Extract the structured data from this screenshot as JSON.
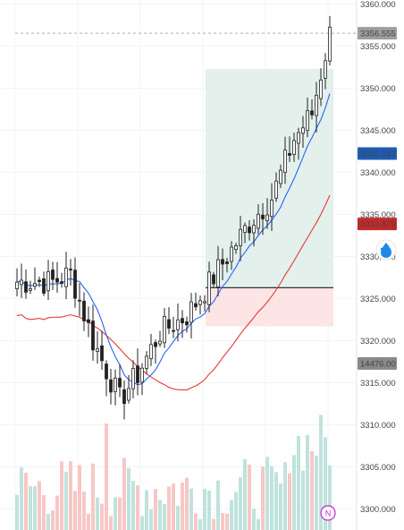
{
  "chart_data": {
    "type": "candlestick",
    "y_range": [
      3297.5,
      3360.5
    ],
    "y_ticks": [
      "3300.000",
      "3305.000",
      "3310.000",
      "3315.000",
      "3320.000",
      "3325.000",
      "3330.000",
      "3335.000",
      "3340.000",
      "3345.000",
      "3350.000",
      "3355.000",
      "3360.000"
    ],
    "price_labels": {
      "last": "3356.555",
      "ma_fast": "3342.243",
      "ma_slow": "3333.879",
      "volume": "14476.00"
    },
    "position": {
      "entry": 3326.3,
      "target": 3352.3,
      "stop": 3321.7
    },
    "badge": "N",
    "colors": {
      "up": "#26a69a",
      "down": "#ef5350",
      "candle": "#222222",
      "ma_fast": "#2962ff",
      "ma_slow": "#e53935"
    }
  }
}
